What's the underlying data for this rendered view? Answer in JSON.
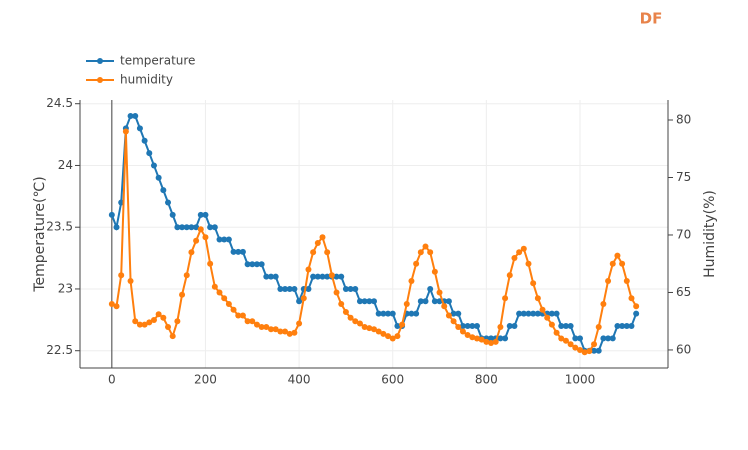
{
  "chart_data": {
    "type": "line",
    "logo": "DF",
    "x": [
      0,
      10,
      20,
      30,
      40,
      50,
      60,
      70,
      80,
      90,
      100,
      110,
      120,
      130,
      140,
      150,
      160,
      170,
      180,
      190,
      200,
      210,
      220,
      230,
      240,
      250,
      260,
      270,
      280,
      290,
      300,
      310,
      320,
      330,
      340,
      350,
      360,
      370,
      380,
      390,
      400,
      410,
      420,
      430,
      440,
      450,
      460,
      470,
      480,
      490,
      500,
      510,
      520,
      530,
      540,
      550,
      560,
      570,
      580,
      590,
      600,
      610,
      620,
      630,
      640,
      650,
      660,
      670,
      680,
      690,
      700,
      710,
      720,
      730,
      740,
      750,
      760,
      770,
      780,
      790,
      800,
      810,
      820,
      830,
      840,
      850,
      860,
      870,
      880,
      890,
      900,
      910,
      920,
      930,
      940,
      950,
      960,
      970,
      980,
      990,
      1000,
      1010,
      1020,
      1030,
      1040,
      1050,
      1060,
      1070,
      1080,
      1090,
      1100,
      1110,
      1120
    ],
    "series": [
      {
        "name": "temperature",
        "color": "#1f77b4",
        "axis": "y",
        "values": [
          23.6,
          23.5,
          23.7,
          24.3,
          24.4,
          24.4,
          24.3,
          24.2,
          24.1,
          24.0,
          23.9,
          23.8,
          23.7,
          23.6,
          23.5,
          23.5,
          23.5,
          23.5,
          23.5,
          23.6,
          23.6,
          23.5,
          23.5,
          23.4,
          23.4,
          23.4,
          23.3,
          23.3,
          23.3,
          23.2,
          23.2,
          23.2,
          23.2,
          23.1,
          23.1,
          23.1,
          23.0,
          23.0,
          23.0,
          23.0,
          22.9,
          23.0,
          23.0,
          23.1,
          23.1,
          23.1,
          23.1,
          23.1,
          23.1,
          23.1,
          23.0,
          23.0,
          23.0,
          22.9,
          22.9,
          22.9,
          22.9,
          22.8,
          22.8,
          22.8,
          22.8,
          22.7,
          22.7,
          22.8,
          22.8,
          22.8,
          22.9,
          22.9,
          23.0,
          22.9,
          22.9,
          22.9,
          22.9,
          22.8,
          22.8,
          22.7,
          22.7,
          22.7,
          22.7,
          22.6,
          22.6,
          22.6,
          22.6,
          22.6,
          22.6,
          22.7,
          22.7,
          22.8,
          22.8,
          22.8,
          22.8,
          22.8,
          22.8,
          22.8,
          22.8,
          22.8,
          22.7,
          22.7,
          22.7,
          22.6,
          22.6,
          22.5,
          22.5,
          22.5,
          22.5,
          22.6,
          22.6,
          22.6,
          22.7,
          22.7,
          22.7,
          22.7,
          22.8
        ]
      },
      {
        "name": "humidity",
        "color": "#ff7f0e",
        "axis": "y2",
        "values": [
          64,
          63.8,
          66.5,
          79,
          66,
          62.5,
          62.2,
          62.2,
          62.4,
          62.6,
          63.1,
          62.8,
          62,
          61.2,
          62.5,
          64.8,
          66.5,
          68.5,
          69.5,
          70.5,
          69.8,
          67.5,
          65.5,
          65,
          64.5,
          64,
          63.5,
          63,
          63,
          62.5,
          62.5,
          62.2,
          62,
          62,
          61.8,
          61.8,
          61.6,
          61.6,
          61.4,
          61.5,
          62.3,
          64.5,
          67,
          68.5,
          69.3,
          69.8,
          68.5,
          66.5,
          65,
          64,
          63.3,
          62.8,
          62.5,
          62.3,
          62,
          61.9,
          61.8,
          61.6,
          61.4,
          61.2,
          61,
          61.2,
          62.2,
          64,
          66,
          67.5,
          68.5,
          69,
          68.5,
          66.8,
          65,
          63.8,
          63,
          62.5,
          62,
          61.6,
          61.3,
          61.1,
          61,
          60.9,
          60.7,
          60.6,
          60.7,
          62,
          64.5,
          66.5,
          68,
          68.5,
          68.8,
          67.5,
          65.8,
          64.5,
          63.5,
          62.8,
          62.2,
          61.5,
          61,
          60.8,
          60.5,
          60.2,
          60,
          59.8,
          59.9,
          60.5,
          62,
          64,
          66,
          67.5,
          68.2,
          67.5,
          66,
          64.5,
          63.8
        ]
      }
    ],
    "ylabel": "Temperature(℃)",
    "y2label": "Humidity(%)",
    "xlim": [
      -68,
      1188
    ],
    "xticks": [
      0,
      200,
      400,
      600,
      800,
      1000
    ],
    "ylim": [
      22.36,
      24.53
    ],
    "yticks": [
      22.5,
      23,
      23.5,
      24,
      24.5
    ],
    "y2lim": [
      58.43,
      81.74
    ],
    "y2ticks": [
      60,
      65,
      70,
      75,
      80
    ],
    "grid": true,
    "legend": "top-left"
  }
}
